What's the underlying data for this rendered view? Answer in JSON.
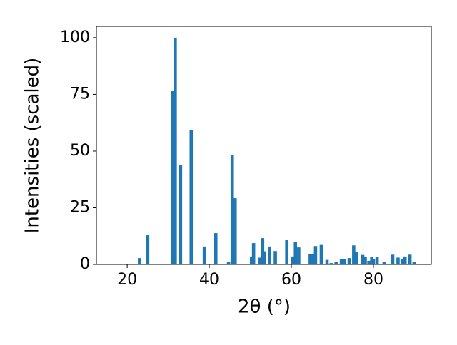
{
  "chart_data": {
    "type": "bar",
    "xlabel": "2θ (°)",
    "ylabel": "Intensities (scaled)",
    "x": [
      16.7,
      23.0,
      25.0,
      31.1,
      31.7,
      33.0,
      35.6,
      38.8,
      41.6,
      44.7,
      45.6,
      46.3,
      50.3,
      50.8,
      52.4,
      53.0,
      53.5,
      54.7,
      56.1,
      58.9,
      60.4,
      61.0,
      61.8,
      64.6,
      65.2,
      65.9,
      67.3,
      68.7,
      69.7,
      70.9,
      72.2,
      72.9,
      74.1,
      75.2,
      75.9,
      77.4,
      78.0,
      78.9,
      79.6,
      80.0,
      80.9,
      82.6,
      84.7,
      86.0,
      87.0,
      87.7,
      88.9,
      89.9
    ],
    "values": [
      0.3,
      2.8,
      13.2,
      76.7,
      100,
      44,
      59.4,
      7.9,
      13.8,
      1,
      48.4,
      29.2,
      3.5,
      9.4,
      3,
      11.6,
      5.8,
      7.9,
      5.9,
      11,
      3.5,
      10,
      7.5,
      4.5,
      4.6,
      8.1,
      8.6,
      2,
      0.6,
      1.2,
      2.5,
      2.3,
      2.8,
      8.4,
      5.4,
      4.2,
      3.2,
      1.6,
      3.4,
      2.5,
      3.3,
      1.2,
      4.3,
      3,
      2.2,
      3.5,
      4.3,
      1
    ],
    "color": "#1f77b4",
    "xlim": [
      12.5,
      94.1
    ],
    "ylim": [
      0,
      105
    ],
    "xticks": [
      20,
      40,
      60,
      80
    ],
    "yticks": [
      0,
      25,
      50,
      75,
      100
    ],
    "grid": false
  }
}
